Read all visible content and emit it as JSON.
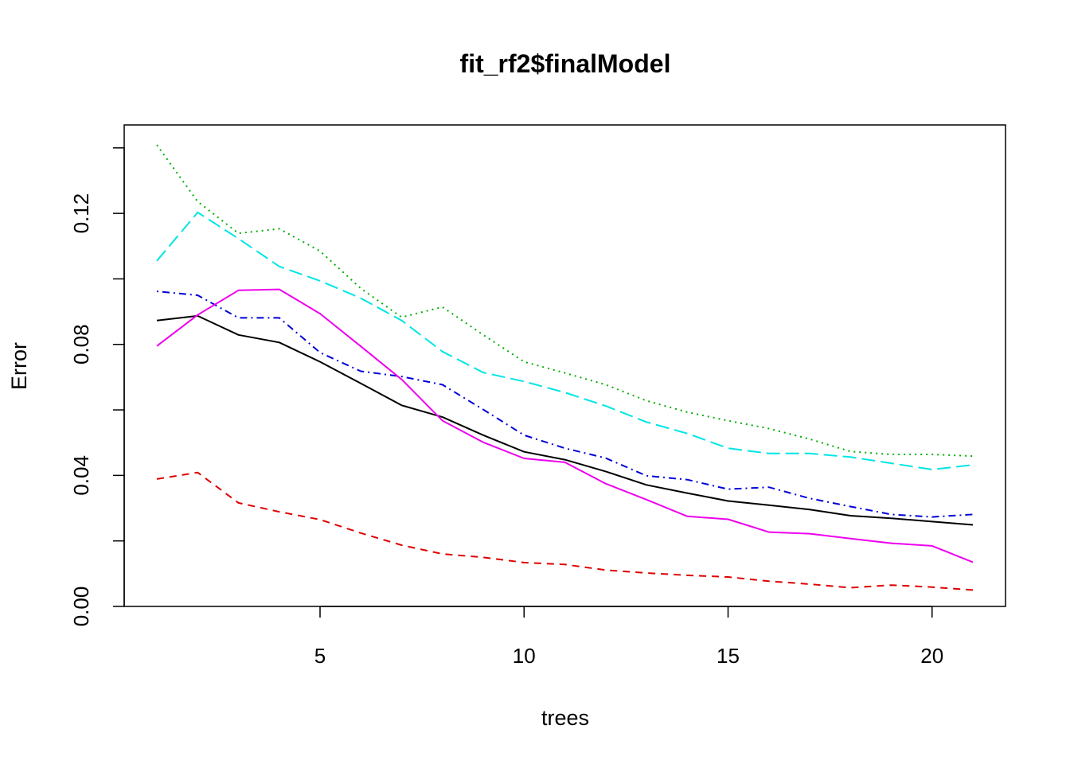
{
  "chart_data": {
    "type": "line",
    "title": "fit_rf2$finalModel",
    "xlabel": "trees",
    "ylabel": "Error",
    "xlim": [
      0.2,
      21.8
    ],
    "ylim": [
      0.0,
      0.147
    ],
    "x_ticks": [
      5,
      10,
      15,
      20
    ],
    "x_tick_labels": [
      "5",
      "10",
      "15",
      "20"
    ],
    "y_ticks": [
      0.0,
      0.02,
      0.04,
      0.06,
      0.08,
      0.1,
      0.12,
      0.14
    ],
    "y_tick_labels": [
      "0.00",
      "",
      "0.04",
      "",
      "0.08",
      "",
      "0.12",
      ""
    ],
    "grid": false,
    "legend": "none",
    "x": [
      1,
      2,
      3,
      4,
      5,
      6,
      7,
      8,
      9,
      10,
      11,
      12,
      13,
      14,
      15,
      16,
      17,
      18,
      19,
      20,
      21
    ],
    "series": [
      {
        "color": "#000000",
        "dash": "solid",
        "values": [
          0.0873,
          0.0887,
          0.0829,
          0.0806,
          0.0747,
          0.0681,
          0.0614,
          0.0578,
          0.0523,
          0.0472,
          0.0448,
          0.0412,
          0.0371,
          0.0346,
          0.0322,
          0.0309,
          0.0296,
          0.0277,
          0.0269,
          0.0259,
          0.0249
        ]
      },
      {
        "color": "#DF0000",
        "dash": "dashed",
        "values": [
          0.0389,
          0.0409,
          0.0316,
          0.0289,
          0.0265,
          0.0224,
          0.0187,
          0.016,
          0.015,
          0.0134,
          0.0128,
          0.0111,
          0.0102,
          0.0095,
          0.009,
          0.0077,
          0.0068,
          0.0057,
          0.0065,
          0.0059,
          0.005
        ]
      },
      {
        "color": "#00B000",
        "dash": "dotted",
        "values": [
          0.1409,
          0.1236,
          0.1139,
          0.1153,
          0.1085,
          0.0971,
          0.0883,
          0.0914,
          0.0829,
          0.0747,
          0.0713,
          0.0677,
          0.0628,
          0.0593,
          0.0567,
          0.0543,
          0.0511,
          0.0473,
          0.0464,
          0.0464,
          0.0459
        ]
      },
      {
        "color": "#0000D8",
        "dash": "dotdash",
        "values": [
          0.0962,
          0.095,
          0.0881,
          0.0881,
          0.0775,
          0.0718,
          0.0702,
          0.0677,
          0.0601,
          0.0523,
          0.0483,
          0.0453,
          0.0399,
          0.0387,
          0.0358,
          0.0364,
          0.033,
          0.0305,
          0.0281,
          0.0273,
          0.0281
        ]
      },
      {
        "color": "#00E5E5",
        "dash": "longdash",
        "values": [
          0.1055,
          0.1203,
          0.1123,
          0.1038,
          0.0994,
          0.0941,
          0.0873,
          0.0778,
          0.0714,
          0.0687,
          0.0653,
          0.0612,
          0.0563,
          0.0528,
          0.0483,
          0.0467,
          0.0467,
          0.0456,
          0.0437,
          0.0418,
          0.0432
        ]
      },
      {
        "color": "#EE00EE",
        "dash": "solid",
        "values": [
          0.0795,
          0.089,
          0.0965,
          0.0968,
          0.0894,
          0.0794,
          0.0693,
          0.0567,
          0.0501,
          0.0452,
          0.044,
          0.0375,
          0.0326,
          0.0275,
          0.0266,
          0.0227,
          0.0222,
          0.0207,
          0.0193,
          0.0185,
          0.0135
        ]
      }
    ]
  }
}
